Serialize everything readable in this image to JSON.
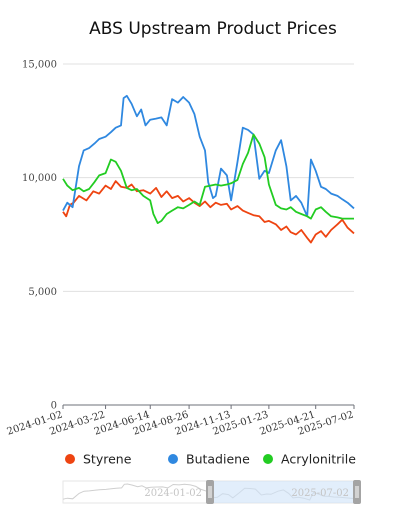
{
  "chart_data": {
    "type": "line",
    "title": "ABS Upstream Product Prices",
    "xlabel": "",
    "ylabel": "",
    "ylim": [
      0,
      15000
    ],
    "yticks": [
      "0",
      "5,000",
      "10,000",
      "15,000"
    ],
    "xticks": [
      "2024-01-02",
      "2024-03-22",
      "2024-06-14",
      "2024-08-26",
      "2024-11-13",
      "2025-01-23",
      "2025-04-21",
      "2025-07-02"
    ],
    "grid": true,
    "legend_position": "bottom",
    "series": [
      {
        "name": "Styrene",
        "color": "#ee4411",
        "points": [
          [
            "2024-01-02",
            8500
          ],
          [
            "2024-01-08",
            8300
          ],
          [
            "2024-01-15",
            8800
          ],
          [
            "2024-01-22",
            8900
          ],
          [
            "2024-02-01",
            9200
          ],
          [
            "2024-02-15",
            9000
          ],
          [
            "2024-02-28",
            9400
          ],
          [
            "2024-03-10",
            9300
          ],
          [
            "2024-03-22",
            9650
          ],
          [
            "2024-04-01",
            9500
          ],
          [
            "2024-04-10",
            9850
          ],
          [
            "2024-04-20",
            9600
          ],
          [
            "2024-05-01",
            9550
          ],
          [
            "2024-05-10",
            9700
          ],
          [
            "2024-05-20",
            9400
          ],
          [
            "2024-06-01",
            9450
          ],
          [
            "2024-06-14",
            9300
          ],
          [
            "2024-06-25",
            9550
          ],
          [
            "2024-07-05",
            9150
          ],
          [
            "2024-07-15",
            9400
          ],
          [
            "2024-07-25",
            9100
          ],
          [
            "2024-08-05",
            9200
          ],
          [
            "2024-08-15",
            8950
          ],
          [
            "2024-08-26",
            9100
          ],
          [
            "2024-09-05",
            8900
          ],
          [
            "2024-09-15",
            8750
          ],
          [
            "2024-09-25",
            8950
          ],
          [
            "2024-10-05",
            8700
          ],
          [
            "2024-10-15",
            8900
          ],
          [
            "2024-10-25",
            8800
          ],
          [
            "2024-11-05",
            8850
          ],
          [
            "2024-11-13",
            8600
          ],
          [
            "2024-11-25",
            8750
          ],
          [
            "2024-12-05",
            8550
          ],
          [
            "2024-12-15",
            8450
          ],
          [
            "2024-12-25",
            8350
          ],
          [
            "2025-01-05",
            8300
          ],
          [
            "2025-01-15",
            8050
          ],
          [
            "2025-01-23",
            8100
          ],
          [
            "2025-02-05",
            7950
          ],
          [
            "2025-02-15",
            7700
          ],
          [
            "2025-02-25",
            7850
          ],
          [
            "2025-03-05",
            7600
          ],
          [
            "2025-03-15",
            7500
          ],
          [
            "2025-03-25",
            7700
          ],
          [
            "2025-04-05",
            7350
          ],
          [
            "2025-04-12",
            7150
          ],
          [
            "2025-04-21",
            7500
          ],
          [
            "2025-05-01",
            7650
          ],
          [
            "2025-05-10",
            7400
          ],
          [
            "2025-05-20",
            7700
          ],
          [
            "2025-06-01",
            7950
          ],
          [
            "2025-06-10",
            8150
          ],
          [
            "2025-06-20",
            7800
          ],
          [
            "2025-07-02",
            7550
          ]
        ]
      },
      {
        "name": "Butadiene",
        "color": "#2f88e0",
        "points": [
          [
            "2024-01-02",
            8550
          ],
          [
            "2024-01-10",
            8900
          ],
          [
            "2024-01-20",
            8700
          ],
          [
            "2024-02-01",
            10500
          ],
          [
            "2024-02-10",
            11200
          ],
          [
            "2024-02-20",
            11300
          ],
          [
            "2024-03-01",
            11500
          ],
          [
            "2024-03-10",
            11700
          ],
          [
            "2024-03-22",
            11800
          ],
          [
            "2024-04-01",
            12000
          ],
          [
            "2024-04-10",
            12200
          ],
          [
            "2024-04-20",
            12300
          ],
          [
            "2024-04-25",
            13500
          ],
          [
            "2024-05-01",
            13600
          ],
          [
            "2024-05-10",
            13250
          ],
          [
            "2024-05-20",
            12700
          ],
          [
            "2024-05-28",
            13000
          ],
          [
            "2024-06-05",
            12300
          ],
          [
            "2024-06-14",
            12550
          ],
          [
            "2024-06-25",
            12600
          ],
          [
            "2024-07-05",
            12650
          ],
          [
            "2024-07-15",
            12300
          ],
          [
            "2024-07-25",
            13450
          ],
          [
            "2024-08-05",
            13300
          ],
          [
            "2024-08-15",
            13550
          ],
          [
            "2024-08-26",
            13300
          ],
          [
            "2024-09-05",
            12800
          ],
          [
            "2024-09-15",
            11800
          ],
          [
            "2024-09-25",
            11200
          ],
          [
            "2024-10-01",
            9800
          ],
          [
            "2024-10-10",
            9100
          ],
          [
            "2024-10-15",
            9200
          ],
          [
            "2024-10-25",
            10400
          ],
          [
            "2024-11-05",
            10100
          ],
          [
            "2024-11-13",
            9000
          ],
          [
            "2024-11-25",
            10700
          ],
          [
            "2024-12-05",
            12200
          ],
          [
            "2024-12-15",
            12100
          ],
          [
            "2024-12-25",
            11900
          ],
          [
            "2025-01-05",
            9950
          ],
          [
            "2025-01-15",
            10300
          ],
          [
            "2025-01-23",
            10200
          ],
          [
            "2025-02-05",
            11200
          ],
          [
            "2025-02-15",
            11650
          ],
          [
            "2025-02-25",
            10500
          ],
          [
            "2025-03-05",
            9000
          ],
          [
            "2025-03-15",
            9200
          ],
          [
            "2025-03-25",
            8900
          ],
          [
            "2025-04-05",
            8300
          ],
          [
            "2025-04-12",
            10800
          ],
          [
            "2025-04-21",
            10300
          ],
          [
            "2025-05-01",
            9600
          ],
          [
            "2025-05-10",
            9500
          ],
          [
            "2025-05-20",
            9300
          ],
          [
            "2025-06-01",
            9200
          ],
          [
            "2025-06-10",
            9050
          ],
          [
            "2025-06-20",
            8900
          ],
          [
            "2025-07-02",
            8650
          ]
        ]
      },
      {
        "name": "Acrylonitrile",
        "color": "#22cc22",
        "points": [
          [
            "2024-01-02",
            9950
          ],
          [
            "2024-01-10",
            9650
          ],
          [
            "2024-01-20",
            9450
          ],
          [
            "2024-02-01",
            9550
          ],
          [
            "2024-02-10",
            9400
          ],
          [
            "2024-02-20",
            9500
          ],
          [
            "2024-03-01",
            9800
          ],
          [
            "2024-03-10",
            10100
          ],
          [
            "2024-03-22",
            10200
          ],
          [
            "2024-04-01",
            10800
          ],
          [
            "2024-04-10",
            10700
          ],
          [
            "2024-04-20",
            10300
          ],
          [
            "2024-05-01",
            9550
          ],
          [
            "2024-05-10",
            9450
          ],
          [
            "2024-05-20",
            9500
          ],
          [
            "2024-06-01",
            9200
          ],
          [
            "2024-06-14",
            9000
          ],
          [
            "2024-06-20",
            8400
          ],
          [
            "2024-06-28",
            8000
          ],
          [
            "2024-07-05",
            8100
          ],
          [
            "2024-07-15",
            8400
          ],
          [
            "2024-07-25",
            8550
          ],
          [
            "2024-08-05",
            8700
          ],
          [
            "2024-08-15",
            8650
          ],
          [
            "2024-08-26",
            8800
          ],
          [
            "2024-09-05",
            8950
          ],
          [
            "2024-09-15",
            8800
          ],
          [
            "2024-09-25",
            9600
          ],
          [
            "2024-10-05",
            9650
          ],
          [
            "2024-10-15",
            9700
          ],
          [
            "2024-10-25",
            9650
          ],
          [
            "2024-11-05",
            9700
          ],
          [
            "2024-11-13",
            9750
          ],
          [
            "2024-11-25",
            9900
          ],
          [
            "2024-12-05",
            10600
          ],
          [
            "2024-12-15",
            11100
          ],
          [
            "2024-12-25",
            11900
          ],
          [
            "2025-01-05",
            11500
          ],
          [
            "2025-01-15",
            10900
          ],
          [
            "2025-01-23",
            9700
          ],
          [
            "2025-02-05",
            8800
          ],
          [
            "2025-02-15",
            8650
          ],
          [
            "2025-02-25",
            8600
          ],
          [
            "2025-03-05",
            8700
          ],
          [
            "2025-03-15",
            8500
          ],
          [
            "2025-03-25",
            8400
          ],
          [
            "2025-04-05",
            8300
          ],
          [
            "2025-04-12",
            8200
          ],
          [
            "2025-04-21",
            8600
          ],
          [
            "2025-05-01",
            8700
          ],
          [
            "2025-05-10",
            8500
          ],
          [
            "2025-05-20",
            8300
          ],
          [
            "2025-06-01",
            8250
          ],
          [
            "2025-06-10",
            8200
          ],
          [
            "2025-06-20",
            8200
          ],
          [
            "2025-07-02",
            8200
          ]
        ]
      }
    ]
  },
  "datazoom": {
    "start_label": "2024-01-02",
    "end_label": "2025-07-02",
    "window_start": 0.5,
    "window_end": 1.0,
    "handle_color": "#a4a4a4",
    "window_color": "#cfe2f8"
  }
}
